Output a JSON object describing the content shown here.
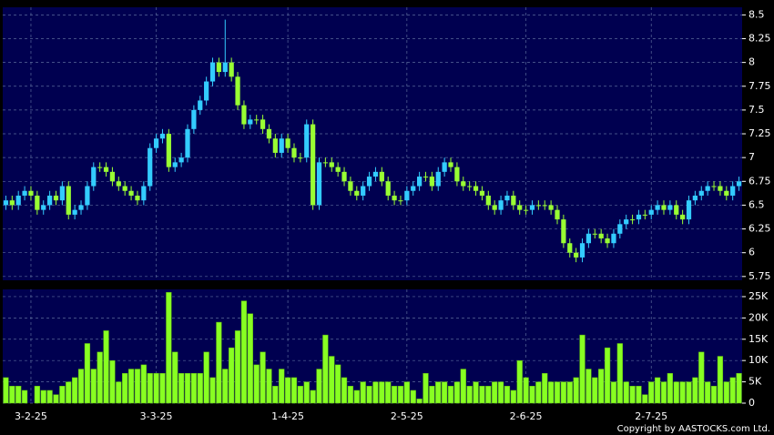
{
  "chart_data": [
    {
      "type": "candlestick",
      "categories": [
        null,
        null,
        null,
        null,
        "3-2-25",
        null,
        null,
        null,
        null,
        null,
        null,
        null,
        null,
        null,
        null,
        null,
        null,
        null,
        null,
        null,
        null,
        null,
        null,
        null,
        "3-3-25",
        null,
        null,
        null,
        null,
        null,
        null,
        null,
        null,
        null,
        null,
        null,
        null,
        null,
        null,
        null,
        null,
        null,
        null,
        null,
        null,
        "1-4-25",
        null,
        null,
        null,
        null,
        null,
        null,
        null,
        null,
        null,
        null,
        null,
        null,
        null,
        null,
        null,
        null,
        null,
        null,
        "2-5-25",
        null,
        null,
        null,
        null,
        null,
        null,
        null,
        null,
        null,
        null,
        null,
        null,
        null,
        null,
        null,
        null,
        null,
        null,
        "2-6-25",
        null,
        null,
        null,
        null,
        null,
        null,
        null,
        null,
        null,
        null,
        null,
        null,
        null,
        null,
        null,
        null,
        null,
        null,
        null,
        "2-7-25",
        null,
        null,
        null,
        null,
        null,
        null,
        null,
        null,
        null,
        null,
        null,
        null,
        null,
        null
      ],
      "open": [
        6.5,
        6.55,
        6.5,
        6.6,
        6.65,
        6.6,
        6.45,
        6.5,
        6.6,
        6.55,
        6.7,
        6.4,
        6.45,
        6.5,
        6.7,
        6.9,
        6.9,
        6.85,
        6.75,
        6.7,
        6.65,
        6.6,
        6.55,
        6.7,
        7.1,
        7.2,
        7.25,
        6.9,
        6.95,
        7.0,
        7.3,
        7.5,
        7.6,
        7.8,
        8.0,
        7.9,
        8.0,
        7.85,
        7.55,
        7.35,
        7.4,
        7.4,
        7.3,
        7.2,
        7.05,
        7.2,
        7.1,
        7.0,
        7.0,
        7.35,
        6.5,
        6.95,
        6.95,
        6.9,
        6.85,
        6.75,
        6.65,
        6.6,
        6.7,
        6.8,
        6.85,
        6.75,
        6.6,
        6.55,
        6.55,
        6.65,
        6.7,
        6.8,
        6.8,
        6.7,
        6.85,
        6.95,
        6.9,
        6.75,
        6.7,
        6.7,
        6.65,
        6.6,
        6.5,
        6.45,
        6.55,
        6.6,
        6.5,
        6.45,
        6.45,
        6.5,
        6.5,
        6.5,
        6.45,
        6.35,
        6.1,
        6.0,
        5.95,
        6.1,
        6.2,
        6.2,
        6.15,
        6.1,
        6.2,
        6.3,
        6.35,
        6.35,
        6.4,
        6.4,
        6.45,
        6.5,
        6.45,
        6.5,
        6.4,
        6.35,
        6.55,
        6.6,
        6.65,
        6.7,
        6.7,
        6.65,
        6.6,
        6.7
      ],
      "high": [
        6.6,
        6.6,
        6.65,
        6.7,
        6.7,
        6.65,
        6.55,
        6.65,
        6.65,
        6.75,
        6.75,
        6.5,
        6.55,
        6.75,
        6.95,
        6.95,
        6.95,
        6.9,
        6.8,
        6.75,
        6.7,
        6.65,
        6.75,
        7.15,
        7.25,
        7.3,
        7.3,
        7.0,
        7.05,
        7.35,
        7.55,
        7.65,
        7.85,
        8.05,
        8.05,
        8.45,
        8.05,
        7.9,
        7.6,
        7.45,
        7.45,
        7.45,
        7.35,
        7.25,
        7.25,
        7.25,
        7.15,
        7.05,
        7.4,
        7.4,
        7.0,
        7.0,
        7.0,
        6.95,
        6.9,
        6.8,
        6.7,
        6.75,
        6.85,
        6.9,
        6.9,
        6.8,
        6.65,
        6.6,
        6.7,
        6.75,
        6.85,
        6.85,
        6.85,
        6.9,
        7.0,
        7.0,
        6.95,
        6.8,
        6.75,
        6.75,
        6.7,
        6.65,
        6.55,
        6.6,
        6.65,
        6.65,
        6.55,
        6.5,
        6.55,
        6.55,
        6.55,
        6.55,
        6.5,
        6.4,
        6.15,
        6.05,
        6.15,
        6.25,
        6.25,
        6.25,
        6.2,
        6.25,
        6.35,
        6.4,
        6.4,
        6.45,
        6.45,
        6.5,
        6.55,
        6.55,
        6.55,
        6.55,
        6.45,
        6.6,
        6.65,
        6.7,
        6.75,
        6.75,
        6.75,
        6.7,
        6.75,
        6.8
      ],
      "low": [
        6.45,
        6.45,
        6.45,
        6.55,
        6.55,
        6.4,
        6.4,
        6.45,
        6.5,
        6.5,
        6.35,
        6.35,
        6.4,
        6.45,
        6.65,
        6.85,
        6.8,
        6.7,
        6.65,
        6.6,
        6.55,
        6.5,
        6.5,
        6.65,
        7.05,
        7.15,
        6.85,
        6.85,
        6.9,
        6.95,
        7.25,
        7.45,
        7.55,
        7.75,
        7.85,
        7.85,
        7.8,
        7.5,
        7.3,
        7.3,
        7.35,
        7.25,
        7.15,
        7.0,
        7.0,
        7.05,
        6.95,
        6.95,
        6.95,
        6.45,
        6.45,
        6.9,
        6.85,
        6.8,
        6.7,
        6.6,
        6.55,
        6.55,
        6.65,
        6.75,
        6.7,
        6.55,
        6.5,
        6.5,
        6.5,
        6.6,
        6.65,
        6.75,
        6.65,
        6.65,
        6.8,
        6.85,
        6.7,
        6.65,
        6.65,
        6.6,
        6.55,
        6.45,
        6.4,
        6.4,
        6.5,
        6.45,
        6.4,
        6.4,
        6.4,
        6.45,
        6.45,
        6.4,
        6.3,
        6.05,
        5.95,
        5.9,
        5.9,
        6.05,
        6.15,
        6.1,
        6.05,
        6.05,
        6.15,
        6.25,
        6.3,
        6.3,
        6.35,
        6.35,
        6.4,
        6.4,
        6.4,
        6.35,
        6.3,
        6.3,
        6.5,
        6.55,
        6.6,
        6.65,
        6.6,
        6.55,
        6.55,
        6.65
      ],
      "close": [
        6.55,
        6.5,
        6.6,
        6.65,
        6.6,
        6.45,
        6.5,
        6.6,
        6.55,
        6.7,
        6.4,
        6.45,
        6.5,
        6.7,
        6.9,
        6.9,
        6.85,
        6.75,
        6.7,
        6.65,
        6.6,
        6.55,
        6.7,
        7.1,
        7.2,
        7.25,
        6.9,
        6.95,
        7.0,
        7.3,
        7.5,
        7.6,
        7.8,
        8.0,
        7.9,
        8.0,
        7.85,
        7.55,
        7.35,
        7.4,
        7.4,
        7.3,
        7.2,
        7.05,
        7.2,
        7.1,
        7.0,
        7.0,
        7.35,
        6.5,
        6.95,
        6.95,
        6.9,
        6.85,
        6.75,
        6.65,
        6.6,
        6.7,
        6.8,
        6.85,
        6.75,
        6.6,
        6.55,
        6.55,
        6.65,
        6.7,
        6.8,
        6.8,
        6.7,
        6.85,
        6.95,
        6.9,
        6.75,
        6.7,
        6.7,
        6.65,
        6.6,
        6.5,
        6.45,
        6.55,
        6.6,
        6.5,
        6.45,
        6.45,
        6.5,
        6.5,
        6.5,
        6.45,
        6.35,
        6.1,
        6.0,
        5.95,
        6.1,
        6.2,
        6.2,
        6.15,
        6.1,
        6.2,
        6.3,
        6.35,
        6.35,
        6.4,
        6.4,
        6.45,
        6.5,
        6.45,
        6.5,
        6.4,
        6.35,
        6.55,
        6.6,
        6.65,
        6.7,
        6.7,
        6.65,
        6.6,
        6.7,
        6.75
      ],
      "up_color": "#33ccff",
      "down_color": "#99ff33",
      "ylim": [
        5.71,
        8.58
      ],
      "yticks": [
        5.75,
        6,
        6.25,
        6.5,
        6.75,
        7,
        7.25,
        7.5,
        7.75,
        8,
        8.25,
        8.5
      ],
      "grid": true
    },
    {
      "type": "bar",
      "values": [
        6000,
        4000,
        4000,
        3000,
        0,
        4000,
        3000,
        3000,
        2000,
        4000,
        5000,
        6000,
        8000,
        14000,
        8000,
        12000,
        17000,
        10000,
        5000,
        7000,
        8000,
        8000,
        9000,
        7000,
        7000,
        7000,
        26000,
        12000,
        7000,
        7000,
        7000,
        7000,
        12000,
        6000,
        19000,
        8000,
        13000,
        17000,
        24000,
        21000,
        9000,
        12000,
        8000,
        4000,
        8000,
        6000,
        6000,
        4000,
        5000,
        3000,
        8000,
        16000,
        11000,
        9000,
        6000,
        4000,
        3000,
        5000,
        4000,
        5000,
        5000,
        5000,
        4000,
        4000,
        5000,
        3000,
        1000,
        7000,
        4000,
        5000,
        5000,
        4000,
        5000,
        8000,
        4000,
        5000,
        4000,
        4000,
        5000,
        5000,
        4000,
        3000,
        10000,
        6000,
        4000,
        5000,
        7000,
        5000,
        5000,
        5000,
        5000,
        6000,
        16000,
        8000,
        6000,
        8000,
        13000,
        5000,
        14000,
        5000,
        4000,
        4000,
        2000,
        5000,
        6000,
        5000,
        7000,
        5000,
        5000,
        5000,
        6000,
        12000,
        5000,
        4000,
        11000,
        5000,
        6000,
        7000
      ],
      "color": "#88ff22",
      "ylim": [
        0,
        26700
      ],
      "yticks": [
        0,
        {
          "value": 5000,
          "label": "5K"
        },
        {
          "value": 10000,
          "label": "10K"
        },
        {
          "value": 15000,
          "label": "15K"
        },
        {
          "value": 20000,
          "label": "20K"
        },
        {
          "value": 25000,
          "label": "25K"
        }
      ],
      "grid": true
    }
  ],
  "footer": "Copyright by AASTOCKS.com Ltd."
}
